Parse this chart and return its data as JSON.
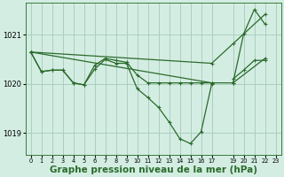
{
  "bg_color": "#d4ede3",
  "grid_color": "#aacfbf",
  "line_color": "#2a6b2a",
  "xlabel": "Graphe pression niveau de la mer (hPa)",
  "xlabel_fontsize": 7.5,
  "ylim": [
    1018.55,
    1021.65
  ],
  "xlim": [
    -0.5,
    23.5
  ],
  "yticks": [
    1019,
    1020,
    1021
  ],
  "xtick_positions": [
    0,
    1,
    2,
    3,
    4,
    5,
    6,
    7,
    8,
    9,
    10,
    11,
    12,
    13,
    14,
    15,
    16,
    17,
    19,
    20,
    21,
    22,
    23
  ],
  "xtick_labels": [
    "0",
    "1",
    "2",
    "3",
    "4",
    "5",
    "6",
    "7",
    "8",
    "9",
    "10",
    "11",
    "12",
    "13",
    "14",
    "15",
    "16",
    "17",
    "19",
    "20",
    "21",
    "22",
    "23"
  ],
  "series1": [
    1020.65,
    1020.25,
    1020.28,
    1020.28,
    1020.02,
    1019.98,
    1020.3,
    1020.5,
    1020.42,
    1020.42,
    1019.9,
    1019.72,
    1019.52,
    1019.22,
    1018.88,
    1018.78,
    1019.02,
    1020.0,
    null,
    1020.02,
    1021.02,
    1021.52,
    1021.22
  ],
  "series2": [
    1020.65,
    1020.25,
    1020.28,
    1020.28,
    1020.02,
    1019.98,
    1020.38,
    1020.52,
    1020.48,
    1020.44,
    1020.18,
    1020.02,
    1020.02,
    1020.02,
    1020.02,
    1020.02,
    1020.02,
    1020.02,
    null,
    1020.1,
    1020.28,
    1020.48,
    1020.48
  ],
  "series3_x": [
    0,
    17,
    19,
    22
  ],
  "series3_y": [
    1020.65,
    1020.42,
    1020.82,
    1021.42
  ],
  "series4_x": [
    0,
    17,
    19,
    22
  ],
  "series4_y": [
    1020.65,
    1020.02,
    1020.02,
    1020.52
  ]
}
